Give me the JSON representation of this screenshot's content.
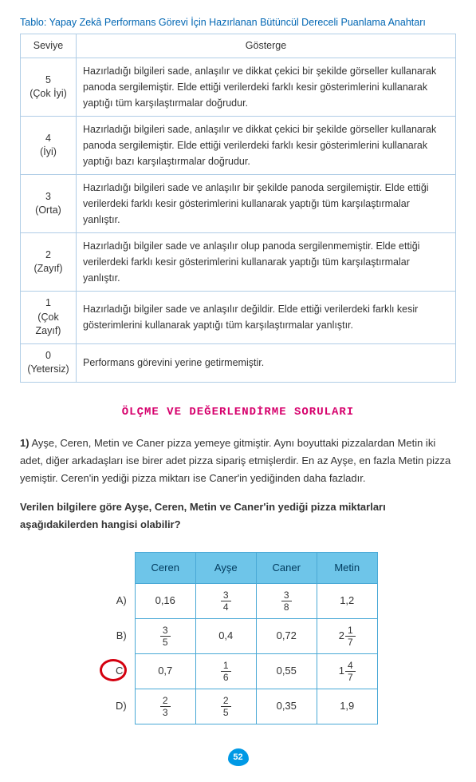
{
  "caption": "Tablo: Yapay Zekâ Performans Görevi İçin Hazırlanan Bütüncül Dereceli Puanlama Anahtarı",
  "rubric": {
    "headers": {
      "level": "Seviye",
      "indicator": "Gösterge"
    },
    "rows": [
      {
        "level": "5\n(Çok İyi)",
        "desc": "Hazırladığı bilgileri sade, anlaşılır ve dikkat çekici bir şekilde görseller kullanarak panoda sergilemiştir. Elde ettiği verilerdeki farklı kesir gösterimlerini kullanarak yaptığı tüm karşılaştırmalar doğrudur."
      },
      {
        "level": "4\n(İyi)",
        "desc": "Hazırladığı bilgileri sade, anlaşılır ve dikkat çekici bir şekilde görseller kullanarak panoda sergilemiştir. Elde ettiği verilerdeki farklı kesir gösterimlerini kullanarak yaptığı bazı karşılaştırmalar doğrudur."
      },
      {
        "level": "3\n(Orta)",
        "desc": "Hazırladığı bilgileri sade ve anlaşılır bir şekilde panoda sergilemiştir. Elde ettiği verilerdeki farklı kesir gösterimlerini kullanarak yaptığı tüm karşılaştırmalar yanlıştır."
      },
      {
        "level": "2\n(Zayıf)",
        "desc": "Hazırladığı bilgiler sade ve anlaşılır olup panoda sergilenmemiştir. Elde ettiği verilerdeki farklı kesir gösterimlerini kullanarak yaptığı tüm karşılaştırmalar yanlıştır."
      },
      {
        "level": "1\n(Çok\nZayıf)",
        "desc": "Hazırladığı bilgiler sade ve anlaşılır değildir. Elde ettiği verilerdeki farklı kesir gösterimlerini kullanarak yaptığı tüm karşılaştırmalar yanlıştır."
      },
      {
        "level": "0\n(Yetersiz)",
        "desc": "Performans görevini yerine getirmemiştir."
      }
    ]
  },
  "sectionTitle": "ÖLÇME VE DEĞERLENDİRME SORULARI",
  "q1": {
    "num": "1)",
    "text": " Ayşe, Ceren, Metin ve Caner pizza yemeye gitmiştir. Aynı boyuttaki pizzalardan Metin iki adet, diğer arkadaşları ise birer adet pizza sipariş etmişlerdir. En az Ayşe, en fazla Metin pizza yemiştir. Ceren'in yediği pizza miktarı ise Caner'in yediğinden daha fazladır.",
    "prompt": "Verilen bilgilere göre Ayşe, Ceren, Metin ve Caner'in yediği pizza miktarları aşağıdakilerden hangisi olabilir?"
  },
  "answers": {
    "headers": [
      "Ceren",
      "Ayşe",
      "Caner",
      "Metin"
    ],
    "rows": [
      {
        "label": "A)",
        "cells": [
          {
            "t": "dec",
            "v": "0,16"
          },
          {
            "t": "frac",
            "n": "3",
            "d": "4"
          },
          {
            "t": "frac",
            "n": "3",
            "d": "8"
          },
          {
            "t": "dec",
            "v": "1,2"
          }
        ]
      },
      {
        "label": "B)",
        "cells": [
          {
            "t": "frac",
            "n": "3",
            "d": "5"
          },
          {
            "t": "dec",
            "v": "0,4"
          },
          {
            "t": "dec",
            "v": "0,72"
          },
          {
            "t": "mixed",
            "w": "2",
            "n": "1",
            "d": "7"
          }
        ]
      },
      {
        "label": "C)",
        "cells": [
          {
            "t": "dec",
            "v": "0,7"
          },
          {
            "t": "frac",
            "n": "1",
            "d": "6"
          },
          {
            "t": "dec",
            "v": "0,55"
          },
          {
            "t": "mixed",
            "w": "1",
            "n": "4",
            "d": "7"
          }
        ]
      },
      {
        "label": "D)",
        "cells": [
          {
            "t": "frac",
            "n": "2",
            "d": "3"
          },
          {
            "t": "frac",
            "n": "2",
            "d": "5"
          },
          {
            "t": "dec",
            "v": "0,35"
          },
          {
            "t": "dec",
            "v": "1,9"
          }
        ]
      }
    ],
    "circled": "C)"
  },
  "pageNumber": "52",
  "colors": {
    "captionColor": "#0066b3",
    "rubricBorder": "#b0cde6",
    "sectionTitleColor": "#d6006c",
    "answerHeaderBg": "#6ec5e9",
    "answerBorder": "#4aa9d6",
    "circleColor": "#d4000f",
    "pageBadgeBg": "#0099e5"
  }
}
